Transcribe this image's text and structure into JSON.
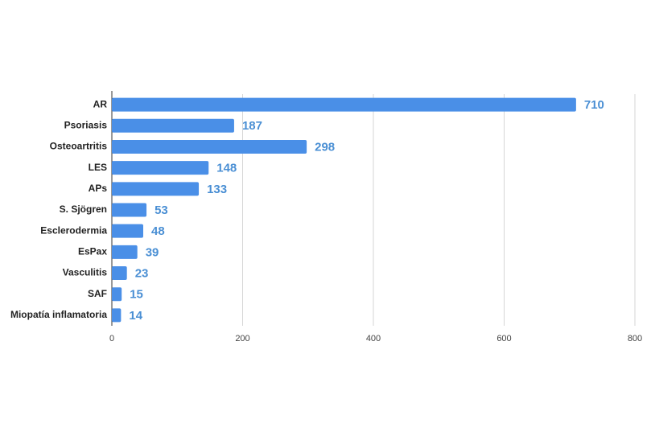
{
  "chart_data": {
    "type": "bar",
    "orientation": "horizontal",
    "categories": [
      "AR",
      "Psoriasis",
      "Osteoartritis",
      "LES",
      "APs",
      "S. Sjögren",
      "Esclerodermia",
      "EsPax",
      "Vasculitis",
      "SAF",
      "Miopatía inflamatoria"
    ],
    "values": [
      710,
      187,
      298,
      148,
      133,
      53,
      48,
      39,
      23,
      15,
      14
    ],
    "color": "#4a8fe7",
    "label_color": "#4a8fd4",
    "xlim": [
      0,
      800
    ],
    "xticks": [
      0,
      200,
      400,
      600,
      800
    ],
    "grid": true
  }
}
